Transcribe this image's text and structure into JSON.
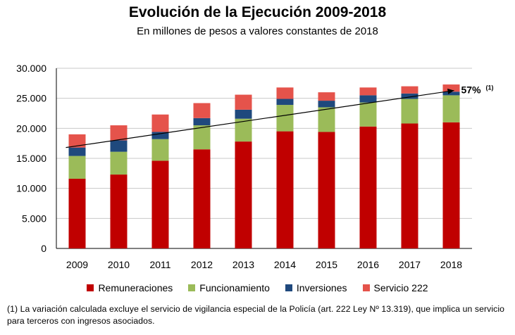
{
  "title": "Evolución  de la Ejecución 2009-2018",
  "subtitle": "En millones de pesos a valores constantes de 2018",
  "colors": {
    "remuneraciones": "#c00000",
    "funcionamiento": "#9bbb59",
    "inversiones": "#1f497d",
    "servicio222": "#e5534b",
    "grid": "#c8c8c8",
    "axis": "#000000"
  },
  "annotation": {
    "text": "57%",
    "superscript": "(1)"
  },
  "footnote": "(1) La variación calculada excluye el servicio de vigilancia especial de la Policía (art. 222 Ley Nº 13.319), que implica un servicio para terceros con ingresos asociados.",
  "chart_data": {
    "type": "bar",
    "stacked": true,
    "title": "Evolución  de la Ejecución 2009-2018",
    "subtitle": "En millones de pesos a valores constantes de 2018",
    "xlabel": "",
    "ylabel": "",
    "ylim": [
      0,
      30000
    ],
    "yticks": [
      0,
      5000,
      10000,
      15000,
      20000,
      25000,
      30000
    ],
    "ytick_labels": [
      "0",
      "5.000",
      "10.000",
      "15.000",
      "20.000",
      "25.000",
      "30.000"
    ],
    "grid": true,
    "legend_position": "bottom",
    "categories": [
      "2009",
      "2010",
      "2011",
      "2012",
      "2013",
      "2014",
      "2015",
      "2016",
      "2017",
      "2018"
    ],
    "series": [
      {
        "name": "Remuneraciones",
        "color": "#c00000",
        "values": [
          11600,
          12300,
          14600,
          16500,
          17800,
          19500,
          19400,
          20300,
          20800,
          21000
        ]
      },
      {
        "name": "Funcionamiento",
        "color": "#9bbb59",
        "values": [
          3800,
          3800,
          3600,
          4000,
          3800,
          4400,
          4100,
          4000,
          4100,
          4500
        ]
      },
      {
        "name": "Inversiones",
        "color": "#1f497d",
        "values": [
          1400,
          1900,
          1200,
          1200,
          1500,
          1000,
          1100,
          1200,
          900,
          600
        ]
      },
      {
        "name": "Servicio 222",
        "color": "#e5534b",
        "values": [
          2200,
          2500,
          2900,
          2500,
          2500,
          1900,
          1400,
          1300,
          1200,
          1200
        ]
      }
    ],
    "trend_line": {
      "from": [
        "2009",
        16800
      ],
      "to": [
        "2018",
        26300
      ],
      "label": "57%",
      "label_superscript": "(1)"
    }
  }
}
